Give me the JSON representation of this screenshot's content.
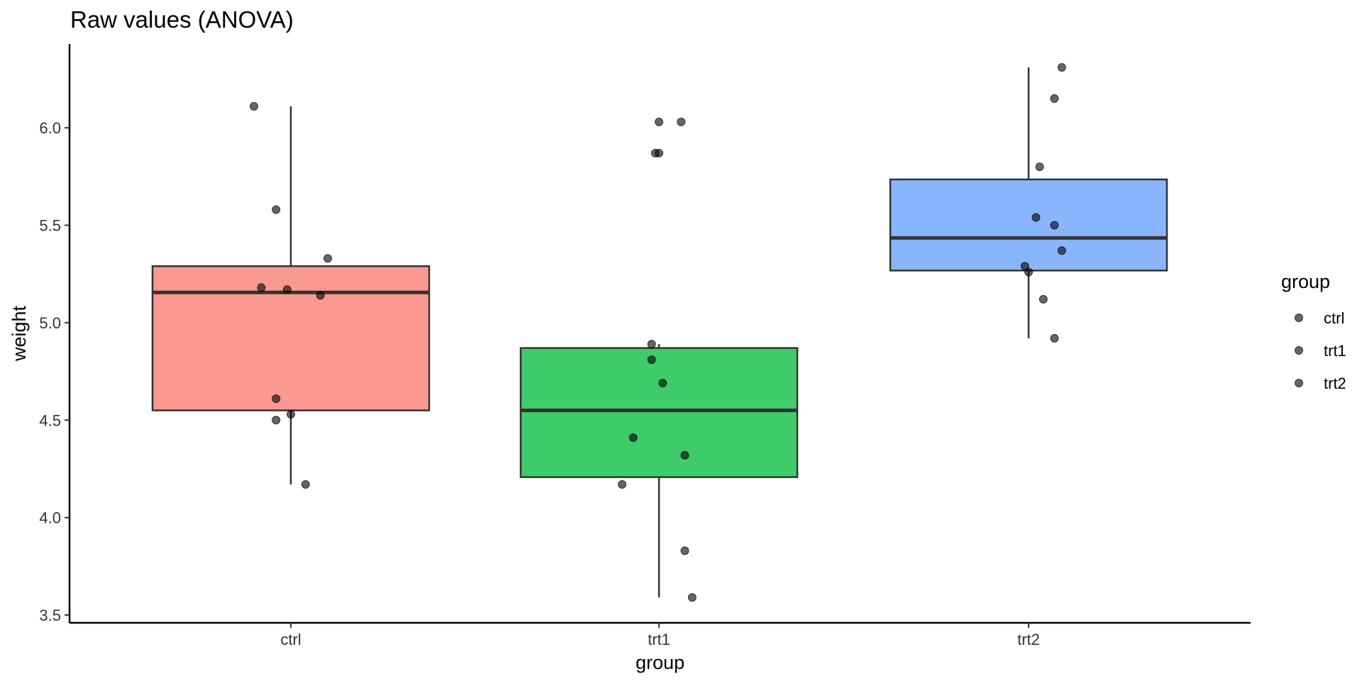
{
  "chart_data": {
    "type": "boxplot",
    "title": "Raw values (ANOVA)",
    "xlabel": "group",
    "ylabel": "weight",
    "ylim": [
      3.46,
      6.43
    ],
    "y_ticks": [
      3.5,
      4.0,
      4.5,
      5.0,
      5.5,
      6.0
    ],
    "y_tick_labels": [
      "3.5",
      "4.0",
      "4.5",
      "5.0",
      "5.5",
      "6.0"
    ],
    "categories": [
      "ctrl",
      "trt1",
      "trt2"
    ],
    "grid": false,
    "legend": {
      "title": "group",
      "position": "right",
      "entries": [
        "ctrl",
        "trt1",
        "trt2"
      ]
    },
    "series": [
      {
        "name": "ctrl",
        "color": "#F8766D",
        "box": {
          "q1": 4.55,
          "median": 5.155,
          "q3": 5.29,
          "whisker_low": 4.17,
          "whisker_high": 6.11
        },
        "points": [
          {
            "jitter": -0.1,
            "y": 6.11
          },
          {
            "jitter": -0.04,
            "y": 5.58
          },
          {
            "jitter": 0.1,
            "y": 5.33
          },
          {
            "jitter": -0.08,
            "y": 5.18
          },
          {
            "jitter": -0.01,
            "y": 5.17
          },
          {
            "jitter": 0.08,
            "y": 5.14
          },
          {
            "jitter": -0.04,
            "y": 4.61
          },
          {
            "jitter": 0.0,
            "y": 4.53
          },
          {
            "jitter": -0.04,
            "y": 4.5
          },
          {
            "jitter": 0.04,
            "y": 4.17
          }
        ]
      },
      {
        "name": "trt1",
        "color": "#00BA38",
        "box": {
          "q1": 4.2075,
          "median": 4.55,
          "q3": 4.87,
          "whisker_low": 3.59,
          "whisker_high": 4.89
        },
        "points": [
          {
            "jitter": 0.0,
            "y": 6.03
          },
          {
            "jitter": 0.06,
            "y": 6.03
          },
          {
            "jitter": -0.01,
            "y": 5.87
          },
          {
            "jitter": 0.0,
            "y": 5.87
          },
          {
            "jitter": -0.02,
            "y": 4.89
          },
          {
            "jitter": -0.02,
            "y": 4.81
          },
          {
            "jitter": 0.01,
            "y": 4.69
          },
          {
            "jitter": -0.07,
            "y": 4.41
          },
          {
            "jitter": 0.07,
            "y": 4.32
          },
          {
            "jitter": -0.1,
            "y": 4.17
          },
          {
            "jitter": 0.07,
            "y": 3.83
          },
          {
            "jitter": 0.09,
            "y": 3.59
          }
        ]
      },
      {
        "name": "trt2",
        "color": "#619CFF",
        "box": {
          "q1": 5.2675,
          "median": 5.435,
          "q3": 5.735,
          "whisker_low": 4.92,
          "whisker_high": 6.31
        },
        "points": [
          {
            "jitter": 0.09,
            "y": 6.31
          },
          {
            "jitter": 0.07,
            "y": 6.15
          },
          {
            "jitter": 0.03,
            "y": 5.8
          },
          {
            "jitter": 0.02,
            "y": 5.54
          },
          {
            "jitter": 0.07,
            "y": 5.5
          },
          {
            "jitter": 0.09,
            "y": 5.37
          },
          {
            "jitter": -0.01,
            "y": 5.29
          },
          {
            "jitter": 0.0,
            "y": 5.26
          },
          {
            "jitter": 0.04,
            "y": 5.12
          },
          {
            "jitter": 0.07,
            "y": 4.92
          }
        ]
      }
    ]
  }
}
